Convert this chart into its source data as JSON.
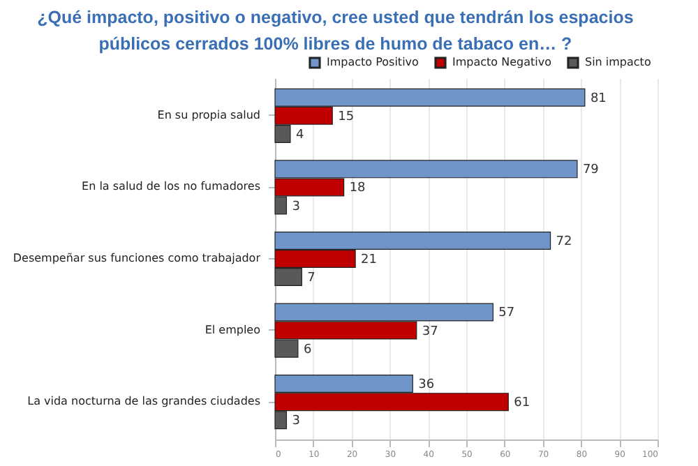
{
  "chart_data": {
    "type": "bar",
    "orientation": "horizontal",
    "title": [
      "¿Qué impacto, positivo o negativo, cree usted que tendrán los espacios",
      "públicos cerrados 100% libres de humo de tabaco en… ?"
    ],
    "categories": [
      "En su propia salud",
      "En la salud de los no fumadores",
      "Desempeñar sus funciones como trabajador",
      "El empleo",
      "La vida nocturna de las grandes ciudades"
    ],
    "series": [
      {
        "name": "Impacto Positivo",
        "color": "#7095c9",
        "values": [
          81,
          79,
          72,
          57,
          36
        ]
      },
      {
        "name": "Impacto Negativo",
        "color": "#c00000",
        "values": [
          15,
          18,
          21,
          37,
          61
        ]
      },
      {
        "name": "Sin impacto",
        "color": "#595959",
        "values": [
          4,
          3,
          7,
          6,
          3
        ]
      }
    ],
    "xlim": [
      0,
      100
    ],
    "xticks": [
      0,
      10,
      20,
      30,
      40,
      50,
      60,
      70,
      80,
      90,
      100
    ],
    "grid": "x",
    "legend": "top right",
    "data_labels": true
  }
}
